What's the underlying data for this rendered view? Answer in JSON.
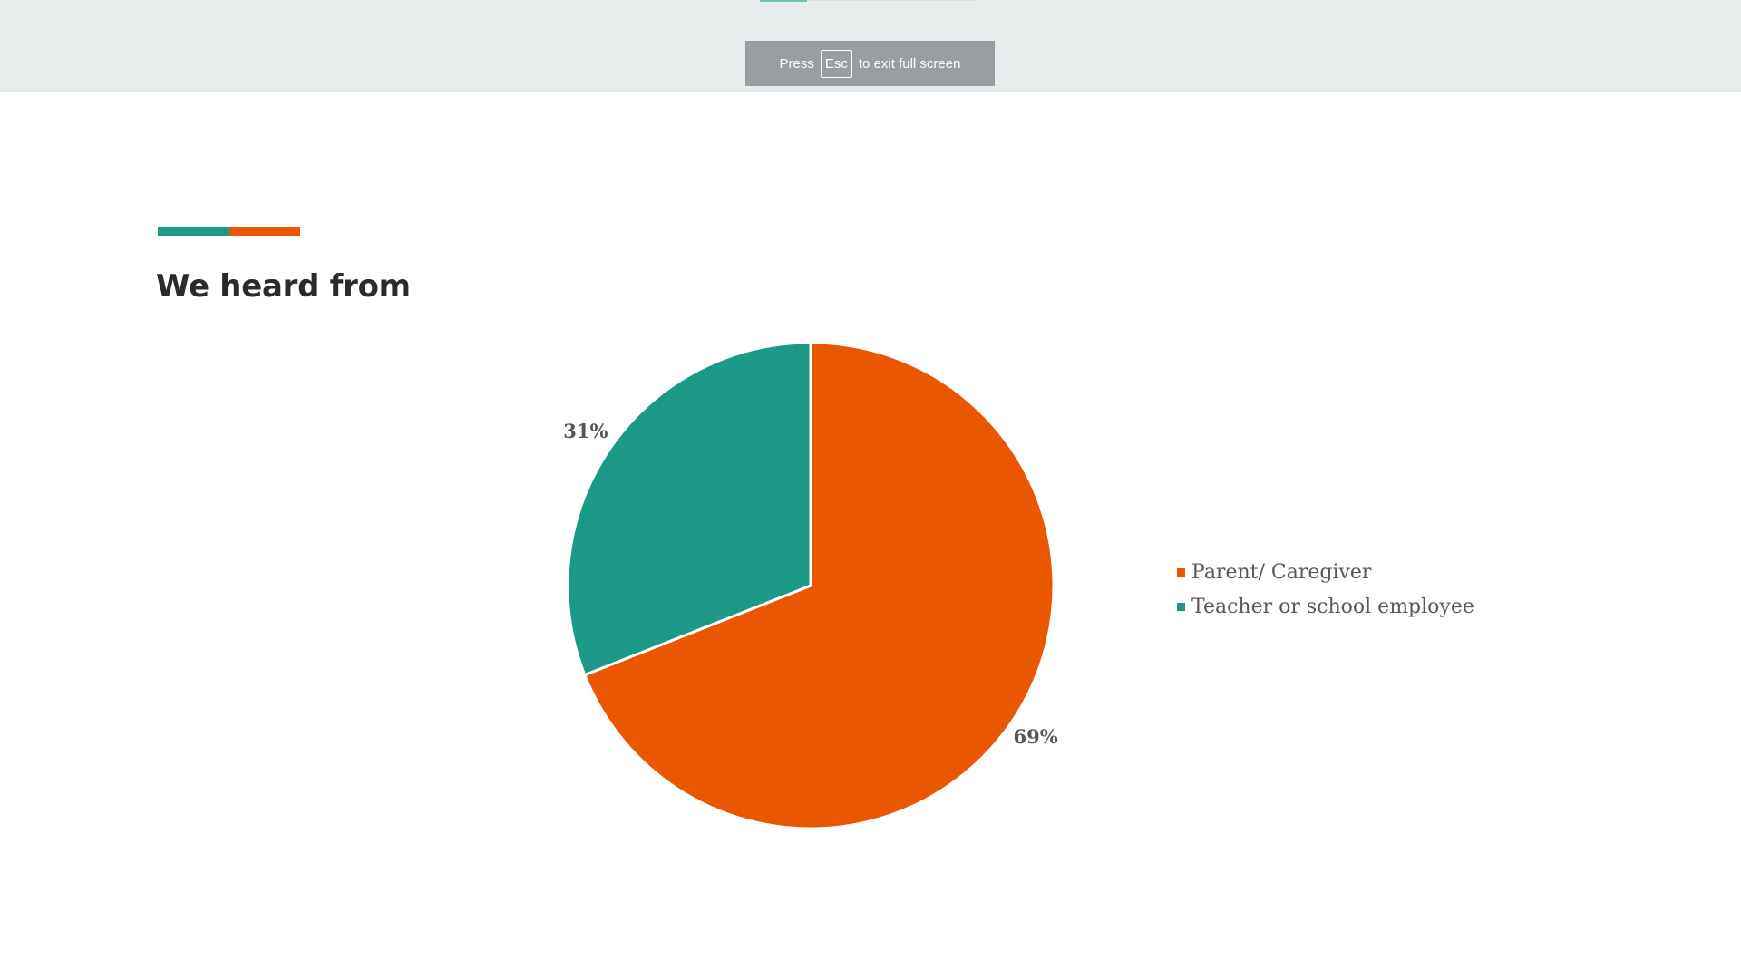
{
  "fullscreen_notice": {
    "press": "Press",
    "key": "Esc",
    "suffix": "to exit full screen"
  },
  "slide": {
    "title": "We heard from",
    "accent_colors": [
      "#1c9987",
      "#eb5600"
    ]
  },
  "chart_data": {
    "type": "pie",
    "title": "",
    "slices": [
      {
        "name": "Parent/ Caregiver",
        "value": 69,
        "label": "69%",
        "color": "#eb5600"
      },
      {
        "name": "Teacher or school employee",
        "value": 31,
        "label": "31%",
        "color": "#1c9987"
      }
    ],
    "legend": "right"
  }
}
